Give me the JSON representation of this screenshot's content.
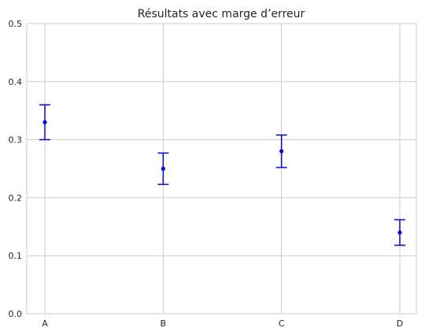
{
  "chart_data": {
    "type": "scatter",
    "title": "Résultats avec marge d’erreur",
    "xlabel": "",
    "ylabel": "",
    "categories": [
      "A",
      "B",
      "C",
      "D"
    ],
    "series": [
      {
        "values": [
          0.33,
          0.25,
          0.28,
          0.14
        ],
        "errors": [
          0.03,
          0.027,
          0.028,
          0.022
        ]
      }
    ],
    "ylim": [
      0,
      0.5
    ],
    "yticks": [
      "0.0",
      "0.1",
      "0.2",
      "0.3",
      "0.4",
      "0.5"
    ],
    "grid": true,
    "colors": {
      "points": "#0000ff",
      "grid": "#cccccc",
      "frame": "#cccccc"
    }
  }
}
